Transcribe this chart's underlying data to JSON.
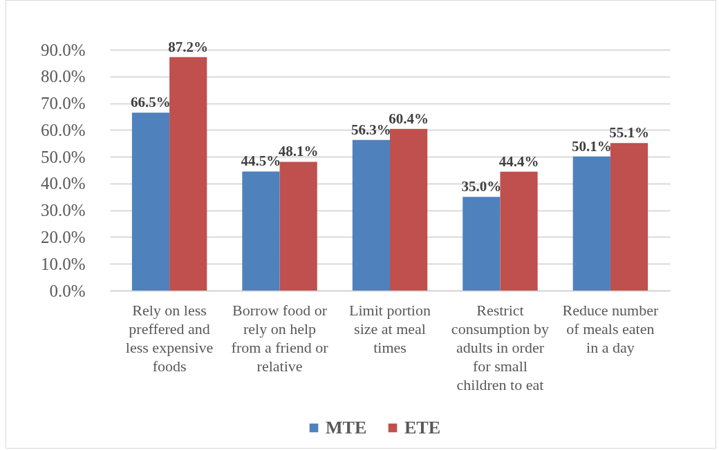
{
  "chart_data": {
    "type": "bar",
    "categories": [
      "Rely on less preffered and less expensive foods",
      "Borrow food or rely on help from a friend or relative",
      "Limit portion size at meal times",
      "Restrict consumption by adults in order for small children to eat",
      "Reduce number of meals eaten in a day"
    ],
    "series": [
      {
        "name": "MTE",
        "color": "#4f81bd",
        "values": [
          66.5,
          44.5,
          56.3,
          35.0,
          50.1
        ],
        "value_labels": [
          "66.5%",
          "44.5%",
          "56.3%",
          "35.0%",
          "50.1%"
        ]
      },
      {
        "name": "ETE",
        "color": "#c0504d",
        "values": [
          87.2,
          48.1,
          60.4,
          44.4,
          55.1
        ],
        "value_labels": [
          "87.2%",
          "48.1%",
          "60.4%",
          "44.4%",
          "55.1%"
        ]
      }
    ],
    "ylim": [
      0,
      90
    ],
    "yticks": [
      {
        "value": 0,
        "label": "0.0%"
      },
      {
        "value": 10,
        "label": "10.0%"
      },
      {
        "value": 20,
        "label": "20.0%"
      },
      {
        "value": 30,
        "label": "30.0%"
      },
      {
        "value": 40,
        "label": "40.0%"
      },
      {
        "value": 50,
        "label": "50.0%"
      },
      {
        "value": 60,
        "label": "60.0%"
      },
      {
        "value": 70,
        "label": "70.0%"
      },
      {
        "value": 80,
        "label": "80.0%"
      },
      {
        "value": 90,
        "label": "90.0%"
      }
    ],
    "grid": "y",
    "legend": "bottom"
  }
}
